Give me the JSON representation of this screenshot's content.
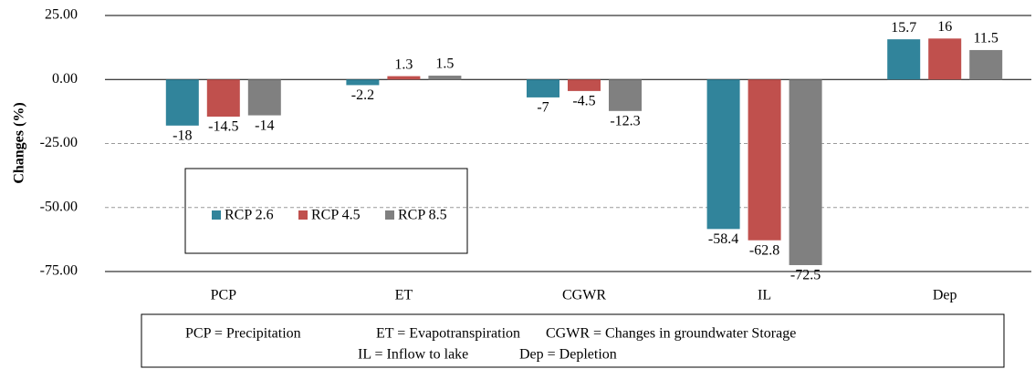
{
  "chart_data": {
    "type": "bar",
    "y_label": "Changes (%)",
    "categories": [
      "PCP",
      "ET",
      "CGWR",
      "IL",
      "Dep"
    ],
    "series": [
      {
        "name": "RCP 2.6",
        "color": "#31849b",
        "values": [
          -18,
          -2.2,
          -7,
          -58.4,
          15.7
        ]
      },
      {
        "name": "RCP 4.5",
        "color": "#c0504d",
        "values": [
          -14.5,
          1.3,
          -4.5,
          -62.8,
          16
        ]
      },
      {
        "name": "RCP 8.5",
        "color": "#808080",
        "values": [
          -14,
          1.5,
          -12.3,
          -72.5,
          11.5
        ]
      }
    ],
    "ylim": [
      -75,
      25
    ],
    "yticks": [
      {
        "value": 25,
        "label": "25.00"
      },
      {
        "value": 0,
        "label": "0.00"
      },
      {
        "value": -25,
        "label": "-25.00"
      },
      {
        "value": -50,
        "label": "-50.00"
      },
      {
        "value": -75,
        "label": "-75.00"
      }
    ],
    "grid": true,
    "notes": [
      "PCP = Precipitation",
      "ET = Evapotranspiration",
      "CGWR = Changes in groundwater Storage",
      "IL = Inflow to lake",
      "Dep = Depletion"
    ]
  }
}
